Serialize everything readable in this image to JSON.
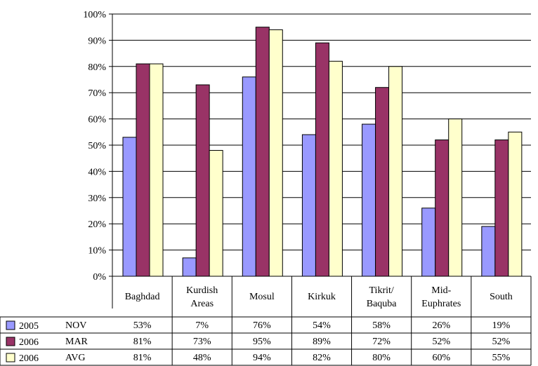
{
  "chart_data": {
    "type": "bar",
    "categories": [
      [
        "Baghdad"
      ],
      [
        "Kurdish",
        "Areas"
      ],
      [
        "Mosul"
      ],
      [
        "Kirkuk"
      ],
      [
        "Tikrit/",
        "Baquba"
      ],
      [
        "Mid-",
        "Euphrates"
      ],
      [
        "South"
      ]
    ],
    "series": [
      {
        "year": "2005",
        "label": "NOV",
        "color": "#9999ff",
        "values": [
          53,
          7,
          76,
          54,
          58,
          26,
          19
        ],
        "labels": [
          "53%",
          "7%",
          "76%",
          "54%",
          "58%",
          "26%",
          "19%"
        ]
      },
      {
        "year": "2006",
        "label": "MAR",
        "color": "#993366",
        "values": [
          81,
          73,
          95,
          89,
          72,
          52,
          52
        ],
        "labels": [
          "81%",
          "73%",
          "95%",
          "89%",
          "72%",
          "52%",
          "52%"
        ]
      },
      {
        "year": "2006",
        "label": "AVG",
        "color": "#ffffcc",
        "values": [
          81,
          48,
          94,
          82,
          80,
          60,
          55
        ],
        "labels": [
          "81%",
          "48%",
          "94%",
          "82%",
          "80%",
          "60%",
          "55%"
        ]
      }
    ],
    "yticks": [
      "0%",
      "10%",
      "20%",
      "30%",
      "40%",
      "50%",
      "60%",
      "70%",
      "80%",
      "90%",
      "100%"
    ],
    "ylim": [
      0,
      100
    ],
    "grid": true,
    "legend": "left of data table"
  }
}
